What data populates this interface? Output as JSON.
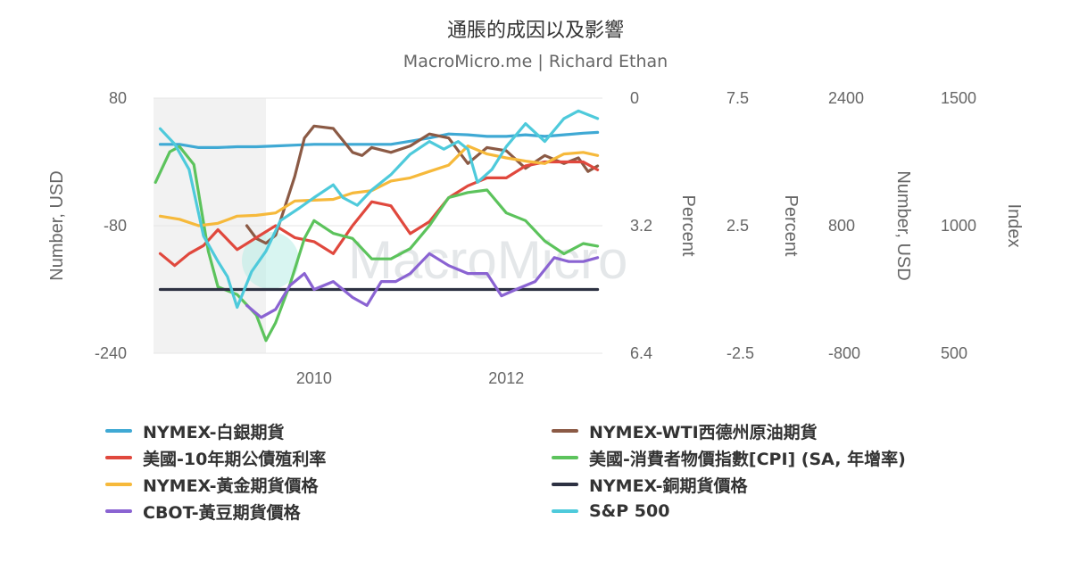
{
  "chart_data": {
    "type": "line",
    "title": "通脹的成因以及影響",
    "subtitle": "MacroMicro.me | Richard Ethan",
    "watermark": "MacroMicro",
    "x_ticks": [
      2010,
      2012
    ],
    "xlim": [
      2008.33,
      2013.0
    ],
    "shaded_region": [
      2008.33,
      2009.5
    ],
    "grid": "horizontal",
    "legend_position": "bottom",
    "axes": [
      {
        "id": "y1",
        "label": "Number, USD",
        "ticks": [
          "80",
          "-80",
          "-240"
        ],
        "range": [
          -240,
          80
        ],
        "side": "left"
      },
      {
        "id": "y2",
        "label": "Percent",
        "ticks": [
          "0",
          "3.2",
          "6.4"
        ],
        "range": [
          0,
          6.4
        ],
        "reversed": true,
        "side": "right"
      },
      {
        "id": "y3",
        "label": "Percent",
        "ticks": [
          "7.5",
          "2.5",
          "-2.5"
        ],
        "range": [
          -2.5,
          7.5
        ],
        "side": "right"
      },
      {
        "id": "y4",
        "label": "Number, USD",
        "ticks": [
          "2400",
          "800",
          "-800"
        ],
        "range": [
          -800,
          2400
        ],
        "side": "right"
      },
      {
        "id": "y5",
        "label": "Index",
        "ticks": [
          "1500",
          "1000",
          "500"
        ],
        "range": [
          500,
          1500
        ],
        "side": "right"
      }
    ],
    "series": [
      {
        "name": "NYMEX-白銀期貨",
        "color": "#3fa9d4",
        "axis": "y1",
        "x": [
          2008.4,
          2008.6,
          2008.8,
          2009.0,
          2009.2,
          2009.4,
          2009.6,
          2009.8,
          2010.0,
          2010.2,
          2010.4,
          2010.6,
          2010.8,
          2011.0,
          2011.2,
          2011.4,
          2011.6,
          2011.8,
          2012.0,
          2012.2,
          2012.4,
          2012.6,
          2012.8,
          2012.95
        ],
        "y": [
          22,
          22,
          18,
          18,
          19,
          19,
          20,
          21,
          22,
          22,
          22,
          22,
          22,
          26,
          30,
          35,
          34,
          32,
          32,
          34,
          32,
          34,
          36,
          37
        ]
      },
      {
        "name": "NYMEX-WTI西德州原油期貨",
        "color": "#8b5a45",
        "axis": "y1",
        "x": [
          2009.3,
          2009.4,
          2009.5,
          2009.6,
          2009.7,
          2009.8,
          2009.9,
          2010.0,
          2010.2,
          2010.4,
          2010.5,
          2010.6,
          2010.8,
          2011.0,
          2011.2,
          2011.4,
          2011.6,
          2011.8,
          2012.0,
          2012.2,
          2012.4,
          2012.6,
          2012.75,
          2012.85,
          2012.95
        ],
        "y": [
          -80,
          -96,
          -102,
          -92,
          -55,
          -18,
          30,
          45,
          42,
          12,
          8,
          18,
          12,
          20,
          35,
          30,
          -2,
          18,
          14,
          -8,
          8,
          -2,
          5,
          -12,
          -5
        ]
      },
      {
        "name": "美國-10年期公債殖利率",
        "color": "#e0483d",
        "axis": "y2",
        "x": [
          2008.4,
          2008.55,
          2008.7,
          2008.85,
          2009.0,
          2009.2,
          2009.4,
          2009.6,
          2009.8,
          2010.0,
          2010.2,
          2010.4,
          2010.6,
          2010.8,
          2011.0,
          2011.2,
          2011.4,
          2011.6,
          2011.8,
          2012.0,
          2012.2,
          2012.4,
          2012.6,
          2012.8,
          2012.95
        ],
        "y": [
          3.9,
          4.2,
          3.9,
          3.7,
          3.3,
          3.8,
          3.5,
          3.2,
          3.5,
          3.6,
          3.9,
          3.2,
          2.6,
          2.7,
          3.4,
          3.1,
          2.5,
          2.2,
          2.0,
          2.0,
          1.7,
          1.6,
          1.6,
          1.6,
          1.8
        ]
      },
      {
        "name": "美國-消費者物價指數[CPI] (SA, 年增率)",
        "color": "#5cc35c",
        "axis": "y3",
        "x": [
          2008.35,
          2008.5,
          2008.6,
          2008.75,
          2008.9,
          2009.0,
          2009.2,
          2009.4,
          2009.5,
          2009.6,
          2009.75,
          2009.9,
          2010.0,
          2010.2,
          2010.4,
          2010.6,
          2010.8,
          2011.0,
          2011.2,
          2011.4,
          2011.6,
          2011.8,
          2012.0,
          2012.2,
          2012.4,
          2012.6,
          2012.8,
          2012.95
        ],
        "y": [
          4.2,
          5.4,
          5.6,
          4.9,
          1.5,
          0.1,
          -0.2,
          -1.0,
          -2.0,
          -1.3,
          0.2,
          2.0,
          2.7,
          2.2,
          2.0,
          1.2,
          1.2,
          1.6,
          2.5,
          3.6,
          3.8,
          3.9,
          3.0,
          2.7,
          1.9,
          1.4,
          1.8,
          1.7
        ]
      },
      {
        "name": "NYMEX-黃金期貨價格",
        "color": "#f6b93b",
        "axis": "y4",
        "x": [
          2008.4,
          2008.6,
          2008.8,
          2009.0,
          2009.2,
          2009.4,
          2009.6,
          2009.8,
          2010.0,
          2010.2,
          2010.4,
          2010.6,
          2010.8,
          2011.0,
          2011.2,
          2011.4,
          2011.6,
          2011.8,
          2012.0,
          2012.2,
          2012.4,
          2012.6,
          2012.8,
          2012.95
        ],
        "y": [
          920,
          880,
          800,
          830,
          920,
          930,
          960,
          1110,
          1120,
          1130,
          1210,
          1240,
          1360,
          1400,
          1480,
          1560,
          1800,
          1700,
          1650,
          1610,
          1580,
          1700,
          1720,
          1680
        ]
      },
      {
        "name": "NYMEX-銅期貨價格",
        "color": "#2d3142",
        "axis": "y1",
        "x": [
          2008.4,
          2012.95
        ],
        "y": [
          -160,
          -160
        ]
      },
      {
        "name": "CBOT-黃豆期貨價格",
        "color": "#8a63d2",
        "axis": "y1",
        "x": [
          2009.3,
          2009.45,
          2009.6,
          2009.75,
          2009.9,
          2010.0,
          2010.2,
          2010.4,
          2010.55,
          2010.7,
          2010.85,
          2011.0,
          2011.2,
          2011.4,
          2011.6,
          2011.8,
          2011.95,
          2012.1,
          2012.3,
          2012.5,
          2012.65,
          2012.8,
          2012.95
        ],
        "y": [
          -180,
          -195,
          -185,
          -155,
          -140,
          -160,
          -150,
          -170,
          -180,
          -150,
          -150,
          -140,
          -115,
          -130,
          -140,
          -140,
          -168,
          -160,
          -150,
          -120,
          -125,
          -125,
          -120
        ]
      },
      {
        "name": "S&P 500",
        "color": "#4ecadb",
        "axis": "y5",
        "x": [
          2008.4,
          2008.55,
          2008.7,
          2008.85,
          2009.0,
          2009.1,
          2009.2,
          2009.35,
          2009.5,
          2009.65,
          2009.85,
          2010.0,
          2010.2,
          2010.3,
          2010.45,
          2010.6,
          2010.8,
          2011.0,
          2011.2,
          2011.35,
          2011.5,
          2011.6,
          2011.7,
          2011.85,
          2012.0,
          2012.2,
          2012.4,
          2012.6,
          2012.75,
          2012.95
        ],
        "y": [
          1380,
          1320,
          1220,
          960,
          860,
          800,
          680,
          820,
          900,
          1020,
          1070,
          1110,
          1160,
          1110,
          1080,
          1140,
          1200,
          1280,
          1330,
          1300,
          1330,
          1300,
          1170,
          1220,
          1310,
          1400,
          1330,
          1420,
          1450,
          1420
        ]
      }
    ]
  }
}
